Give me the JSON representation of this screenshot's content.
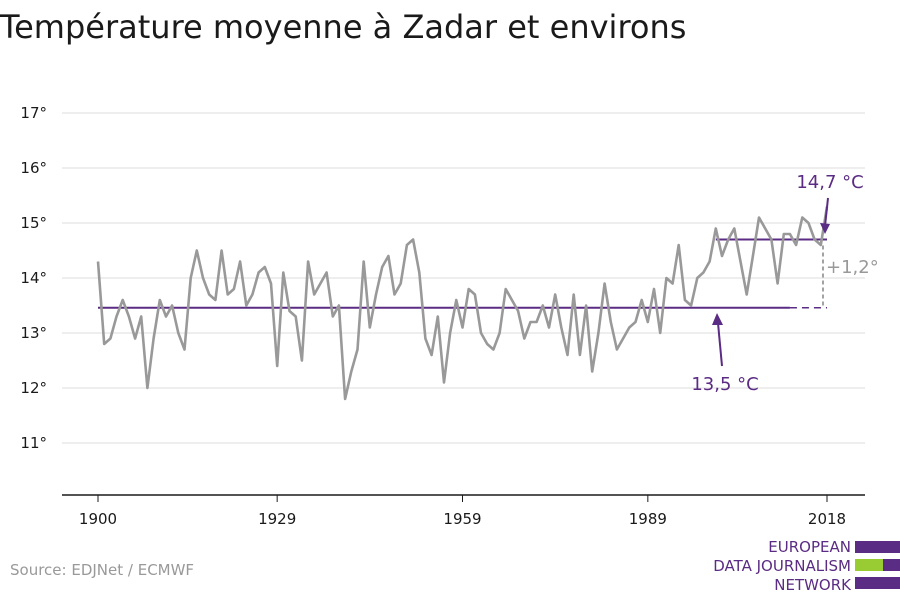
{
  "title": "Température moyenne à Zadar et environs",
  "source": "Source: EDJNet / ECMWF",
  "logo": {
    "lines": [
      "EUROPEAN",
      "DATA JOURNALISM",
      "NETWORK"
    ]
  },
  "colors": {
    "series": "#999999",
    "accent": "#5b2c83",
    "green": "#99cc33",
    "grid": "#dddddd"
  },
  "annotations": {
    "recent_mean": "14,7 °C",
    "baseline_mean": "13,5 °C",
    "difference": "+1,2°"
  },
  "chart_data": {
    "type": "line",
    "title": "Température moyenne à Zadar et environs",
    "xlabel": "",
    "ylabel": "",
    "x_ticks": [
      "1900",
      "1929",
      "1959",
      "1989",
      "2018"
    ],
    "y_ticks": [
      "11°",
      "12°",
      "13°",
      "14°",
      "15°",
      "16°",
      "17°"
    ],
    "xlim": [
      1900,
      2018
    ],
    "ylim": [
      10,
      17
    ],
    "grid": true,
    "series": [
      {
        "x": [
          1900,
          1901,
          1902,
          1903,
          1904,
          1905,
          1906,
          1907,
          1908,
          1909,
          1910,
          1911,
          1912,
          1913,
          1914,
          1915,
          1916,
          1917,
          1918,
          1919,
          1920,
          1921,
          1922,
          1923,
          1924,
          1925,
          1926,
          1927,
          1928,
          1929,
          1930,
          1931,
          1932,
          1933,
          1934,
          1935,
          1936,
          1937,
          1938,
          1939,
          1940,
          1941,
          1942,
          1943,
          1944,
          1945,
          1946,
          1947,
          1948,
          1949,
          1950,
          1951,
          1952,
          1953,
          1954,
          1955,
          1956,
          1957,
          1958,
          1959,
          1960,
          1961,
          1962,
          1963,
          1964,
          1965,
          1966,
          1967,
          1968,
          1969,
          1970,
          1971,
          1972,
          1973,
          1974,
          1975,
          1976,
          1977,
          1978,
          1979,
          1980,
          1981,
          1982,
          1983,
          1984,
          1985,
          1986,
          1987,
          1988,
          1989,
          1990,
          1991,
          1992,
          1993,
          1994,
          1995,
          1996,
          1997,
          1998,
          1999,
          2000,
          2001,
          2002,
          2003,
          2004,
          2005,
          2006,
          2007,
          2008,
          2009,
          2010,
          2011,
          2012,
          2013,
          2014,
          2015,
          2016,
          2017,
          2018
        ],
        "values": [
          14.3,
          12.8,
          12.9,
          13.3,
          13.6,
          13.3,
          12.9,
          13.3,
          12.0,
          12.9,
          13.6,
          13.3,
          13.5,
          13.0,
          12.7,
          14.0,
          14.5,
          14.0,
          13.7,
          13.6,
          14.5,
          13.7,
          13.8,
          14.3,
          13.5,
          13.7,
          14.1,
          14.2,
          13.9,
          12.4,
          14.1,
          13.4,
          13.3,
          12.5,
          14.3,
          13.7,
          13.9,
          14.1,
          13.3,
          13.5,
          11.8,
          12.3,
          12.7,
          14.3,
          13.1,
          13.7,
          14.2,
          14.4,
          13.7,
          13.9,
          14.6,
          14.7,
          14.1,
          12.9,
          12.6,
          13.3,
          12.1,
          13.0,
          13.6,
          13.1,
          13.8,
          13.7,
          13.0,
          12.8,
          12.7,
          13.0,
          13.8,
          13.6,
          13.4,
          12.9,
          13.2,
          13.2,
          13.5,
          13.1,
          13.7,
          13.1,
          12.6,
          13.7,
          12.6,
          13.5,
          12.3,
          13.0,
          13.9,
          13.2,
          12.7,
          12.9,
          13.1,
          13.2,
          13.6,
          13.2,
          13.8,
          13.0,
          14.0,
          13.9,
          14.6,
          13.6,
          13.5,
          14.0,
          14.1,
          14.3,
          14.9,
          14.4,
          14.7,
          14.9,
          14.3,
          13.7,
          14.4,
          15.1,
          14.9,
          14.7,
          13.9,
          14.8,
          14.8,
          14.6,
          15.1,
          15.0,
          14.7,
          14.6,
          15.3
        ]
      }
    ],
    "reference_lines": [
      {
        "label": "13,5 °C",
        "value": 13.46,
        "from": 1900,
        "to": 2018,
        "dashed_from": 2012
      },
      {
        "label": "14,7 °C",
        "value": 14.7,
        "from": 2000,
        "to": 2018
      }
    ]
  }
}
